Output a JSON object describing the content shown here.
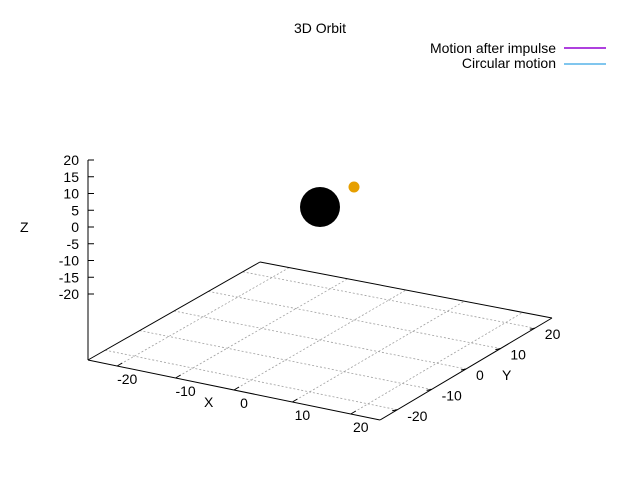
{
  "chart_data": {
    "type": "3d-scatter",
    "title": "3D Orbit",
    "xlabel": "X",
    "ylabel": "Y",
    "zlabel": "Z",
    "xlim": [
      -25,
      25
    ],
    "ylim": [
      -25,
      25
    ],
    "zlim": [
      -25,
      20
    ],
    "x_ticks": [
      "-20",
      "-10",
      "0",
      "10",
      "20"
    ],
    "y_ticks": [
      "-20",
      "-10",
      "0",
      "10",
      "20"
    ],
    "z_ticks": [
      "20",
      "15",
      "10",
      "5",
      "0",
      "-5",
      "-10",
      "-15",
      "-20"
    ],
    "grid": true,
    "legend": {
      "placement": "top-right",
      "entries": [
        {
          "label": "Motion after impulse",
          "color": "#9400d3"
        },
        {
          "label": "Circular motion",
          "color": "#56b4e9"
        }
      ]
    },
    "bodies": [
      {
        "kind": "central-body",
        "x": 0,
        "y": 0,
        "z": 0,
        "color": "#000000"
      },
      {
        "kind": "orbiting-body",
        "x": 5,
        "y": 5,
        "z": 5,
        "color": "#e69f00"
      }
    ]
  }
}
